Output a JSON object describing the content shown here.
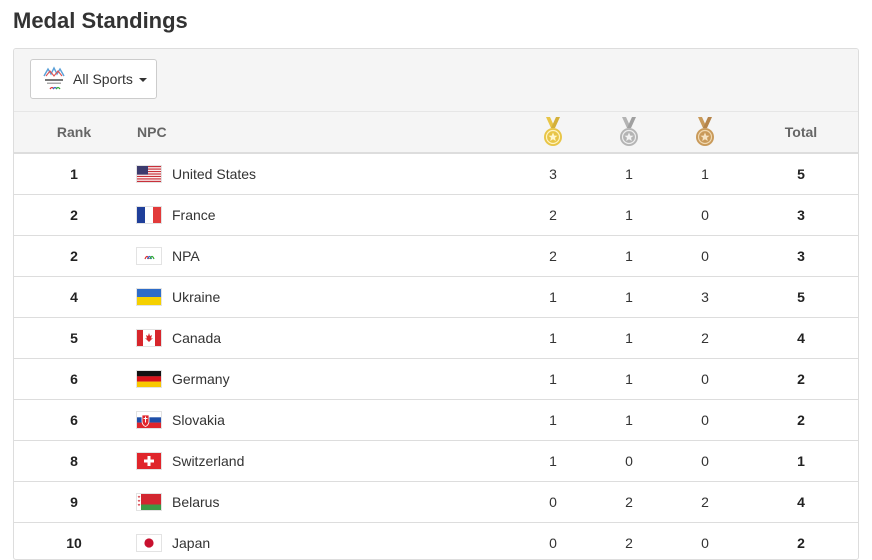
{
  "page": {
    "title": "Medal Standings"
  },
  "filter": {
    "selected": "All Sports",
    "logo_icon": "paralympic-games-logo-icon"
  },
  "table": {
    "headers": {
      "rank": "Rank",
      "npc": "NPC",
      "gold_icon": "gold-medal-icon",
      "silver_icon": "silver-medal-icon",
      "bronze_icon": "bronze-medal-icon",
      "total": "Total"
    },
    "rows": [
      {
        "rank": "1",
        "flag": "us",
        "npc": "United States",
        "gold": "3",
        "silver": "1",
        "bronze": "1",
        "total": "5"
      },
      {
        "rank": "2",
        "flag": "fr",
        "npc": "France",
        "gold": "2",
        "silver": "1",
        "bronze": "0",
        "total": "3"
      },
      {
        "rank": "2",
        "flag": "npa",
        "npc": "NPA",
        "gold": "2",
        "silver": "1",
        "bronze": "0",
        "total": "3"
      },
      {
        "rank": "4",
        "flag": "ua",
        "npc": "Ukraine",
        "gold": "1",
        "silver": "1",
        "bronze": "3",
        "total": "5"
      },
      {
        "rank": "5",
        "flag": "ca",
        "npc": "Canada",
        "gold": "1",
        "silver": "1",
        "bronze": "2",
        "total": "4"
      },
      {
        "rank": "6",
        "flag": "de",
        "npc": "Germany",
        "gold": "1",
        "silver": "1",
        "bronze": "0",
        "total": "2"
      },
      {
        "rank": "6",
        "flag": "sk",
        "npc": "Slovakia",
        "gold": "1",
        "silver": "1",
        "bronze": "0",
        "total": "2"
      },
      {
        "rank": "8",
        "flag": "ch",
        "npc": "Switzerland",
        "gold": "1",
        "silver": "0",
        "bronze": "0",
        "total": "1"
      },
      {
        "rank": "9",
        "flag": "by",
        "npc": "Belarus",
        "gold": "0",
        "silver": "2",
        "bronze": "2",
        "total": "4"
      },
      {
        "rank": "10",
        "flag": "jp",
        "npc": "Japan",
        "gold": "0",
        "silver": "2",
        "bronze": "0",
        "total": "2"
      }
    ]
  },
  "colors": {
    "gold": "#e8c547",
    "silver": "#b4b4b4",
    "bronze": "#c99a5a",
    "header_bg": "#f5f5f5",
    "border": "#dddddd"
  }
}
